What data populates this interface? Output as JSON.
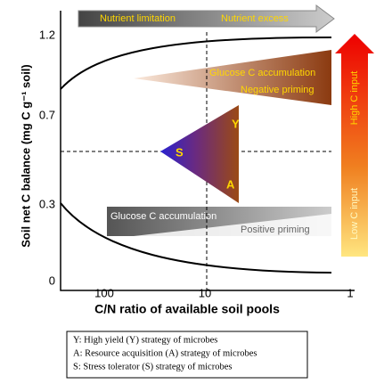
{
  "top_arrow": {
    "left": "Nutrient limitation",
    "right": "Nutrient excess"
  },
  "y_axis": {
    "label": "Soil net C balance (mg C g⁻¹ soil)",
    "ticks": [
      "1.2",
      "0.7",
      "0.3",
      "0"
    ]
  },
  "x_axis": {
    "label": "C/N ratio of available soil pools",
    "ticks": [
      "100",
      "10",
      "1"
    ]
  },
  "upper_wedge": {
    "line1": "Glucose C accumulation",
    "line2": "Negative priming"
  },
  "lower_wedge": {
    "line1": "Glucose C accumulation",
    "line2": "Positive priming"
  },
  "triangle": {
    "y": "Y",
    "s": "S",
    "a": "A"
  },
  "side_arrow": {
    "top": "High C input",
    "bottom": "Low C input"
  },
  "legend": [
    "Y: High yield (Y) strategy of microbes",
    "A: Resource acquisition (A) strategy of microbes",
    "S: Stress tolerator (S) strategy of microbes"
  ]
}
